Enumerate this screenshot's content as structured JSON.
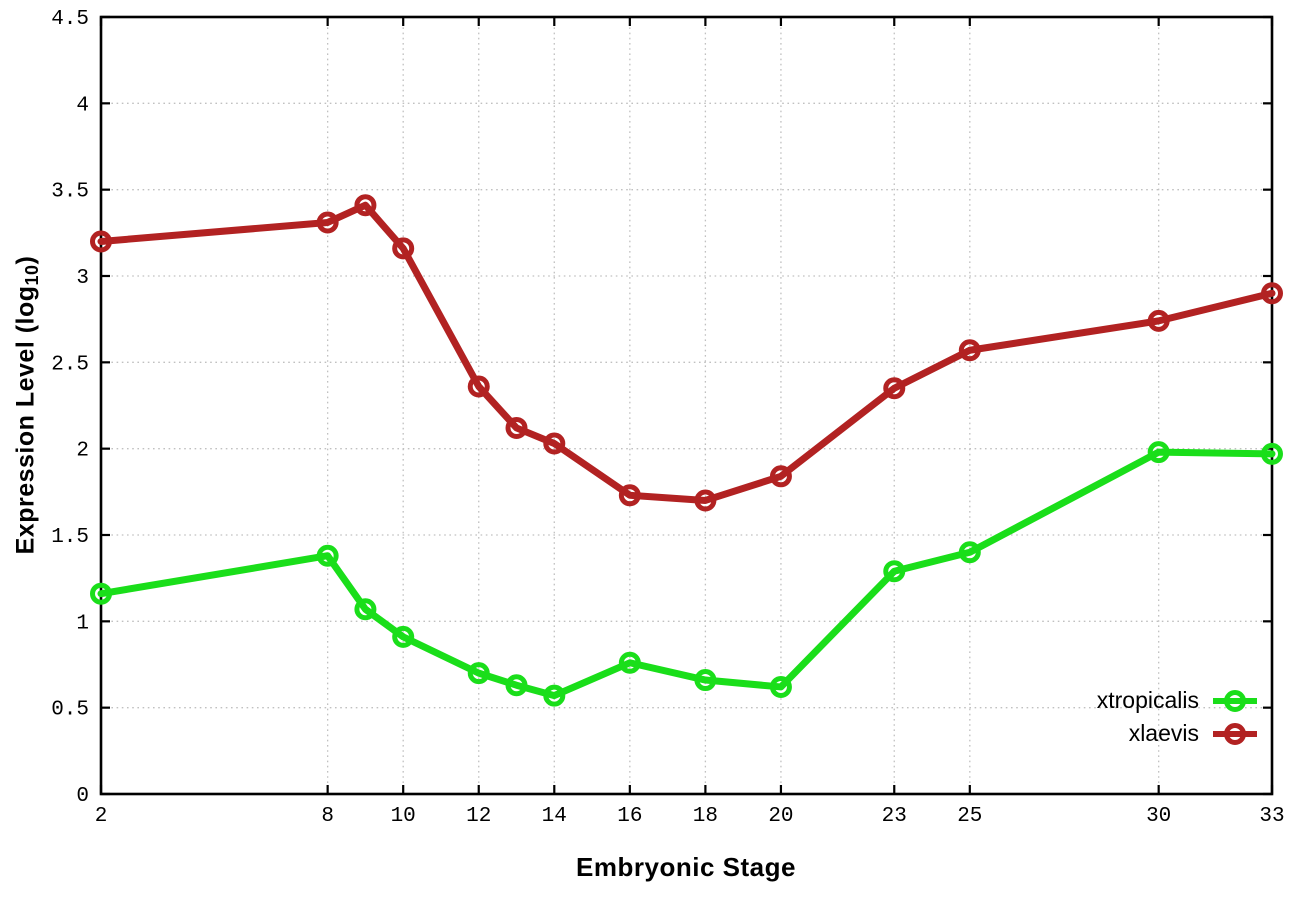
{
  "page": {
    "background": "#ffffff"
  },
  "chart_data": {
    "type": "line",
    "title": "",
    "xlabel": "Embryonic Stage",
    "ylabel": {
      "main": "Expression Level (log",
      "sub": "10",
      "close": ")"
    },
    "ylabel_plain": "Expression Level (log10)",
    "x": [
      2,
      8,
      9,
      10,
      12,
      13,
      14,
      16,
      18,
      20,
      23,
      25,
      30,
      33
    ],
    "series": [
      {
        "name": "xtropicalis",
        "color": "#1ade1a",
        "values": [
          1.16,
          1.38,
          1.07,
          0.91,
          0.7,
          0.63,
          0.57,
          0.76,
          0.66,
          0.62,
          1.29,
          1.4,
          1.98,
          1.97
        ]
      },
      {
        "name": "xlaevis",
        "color": "#b22222",
        "values": [
          3.2,
          3.31,
          3.41,
          3.16,
          2.36,
          2.12,
          2.03,
          1.73,
          1.7,
          1.84,
          2.35,
          2.57,
          2.74,
          2.9
        ]
      }
    ],
    "xticks": {
      "values": [
        2,
        8,
        10,
        12,
        14,
        16,
        18,
        20,
        23,
        25,
        30,
        33
      ],
      "labels": [
        "2",
        "8",
        "10",
        "12",
        "14",
        "16",
        "18",
        "20",
        "23",
        "25",
        "30",
        "33"
      ]
    },
    "yticks": {
      "values": [
        0,
        0.5,
        1,
        1.5,
        2,
        2.5,
        3,
        3.5,
        4,
        4.5
      ],
      "labels": [
        "0",
        "0.5",
        "1",
        "1.5",
        "2",
        "2.5",
        "3",
        "3.5",
        "4",
        "4.5"
      ]
    },
    "xlim": [
      2,
      33
    ],
    "ylim": [
      0,
      4.5
    ],
    "grid": true,
    "grid_style": "dotted",
    "grid_color": "#c0c0c0",
    "axis_color": "#000000",
    "legend_position": "bottom-right"
  }
}
